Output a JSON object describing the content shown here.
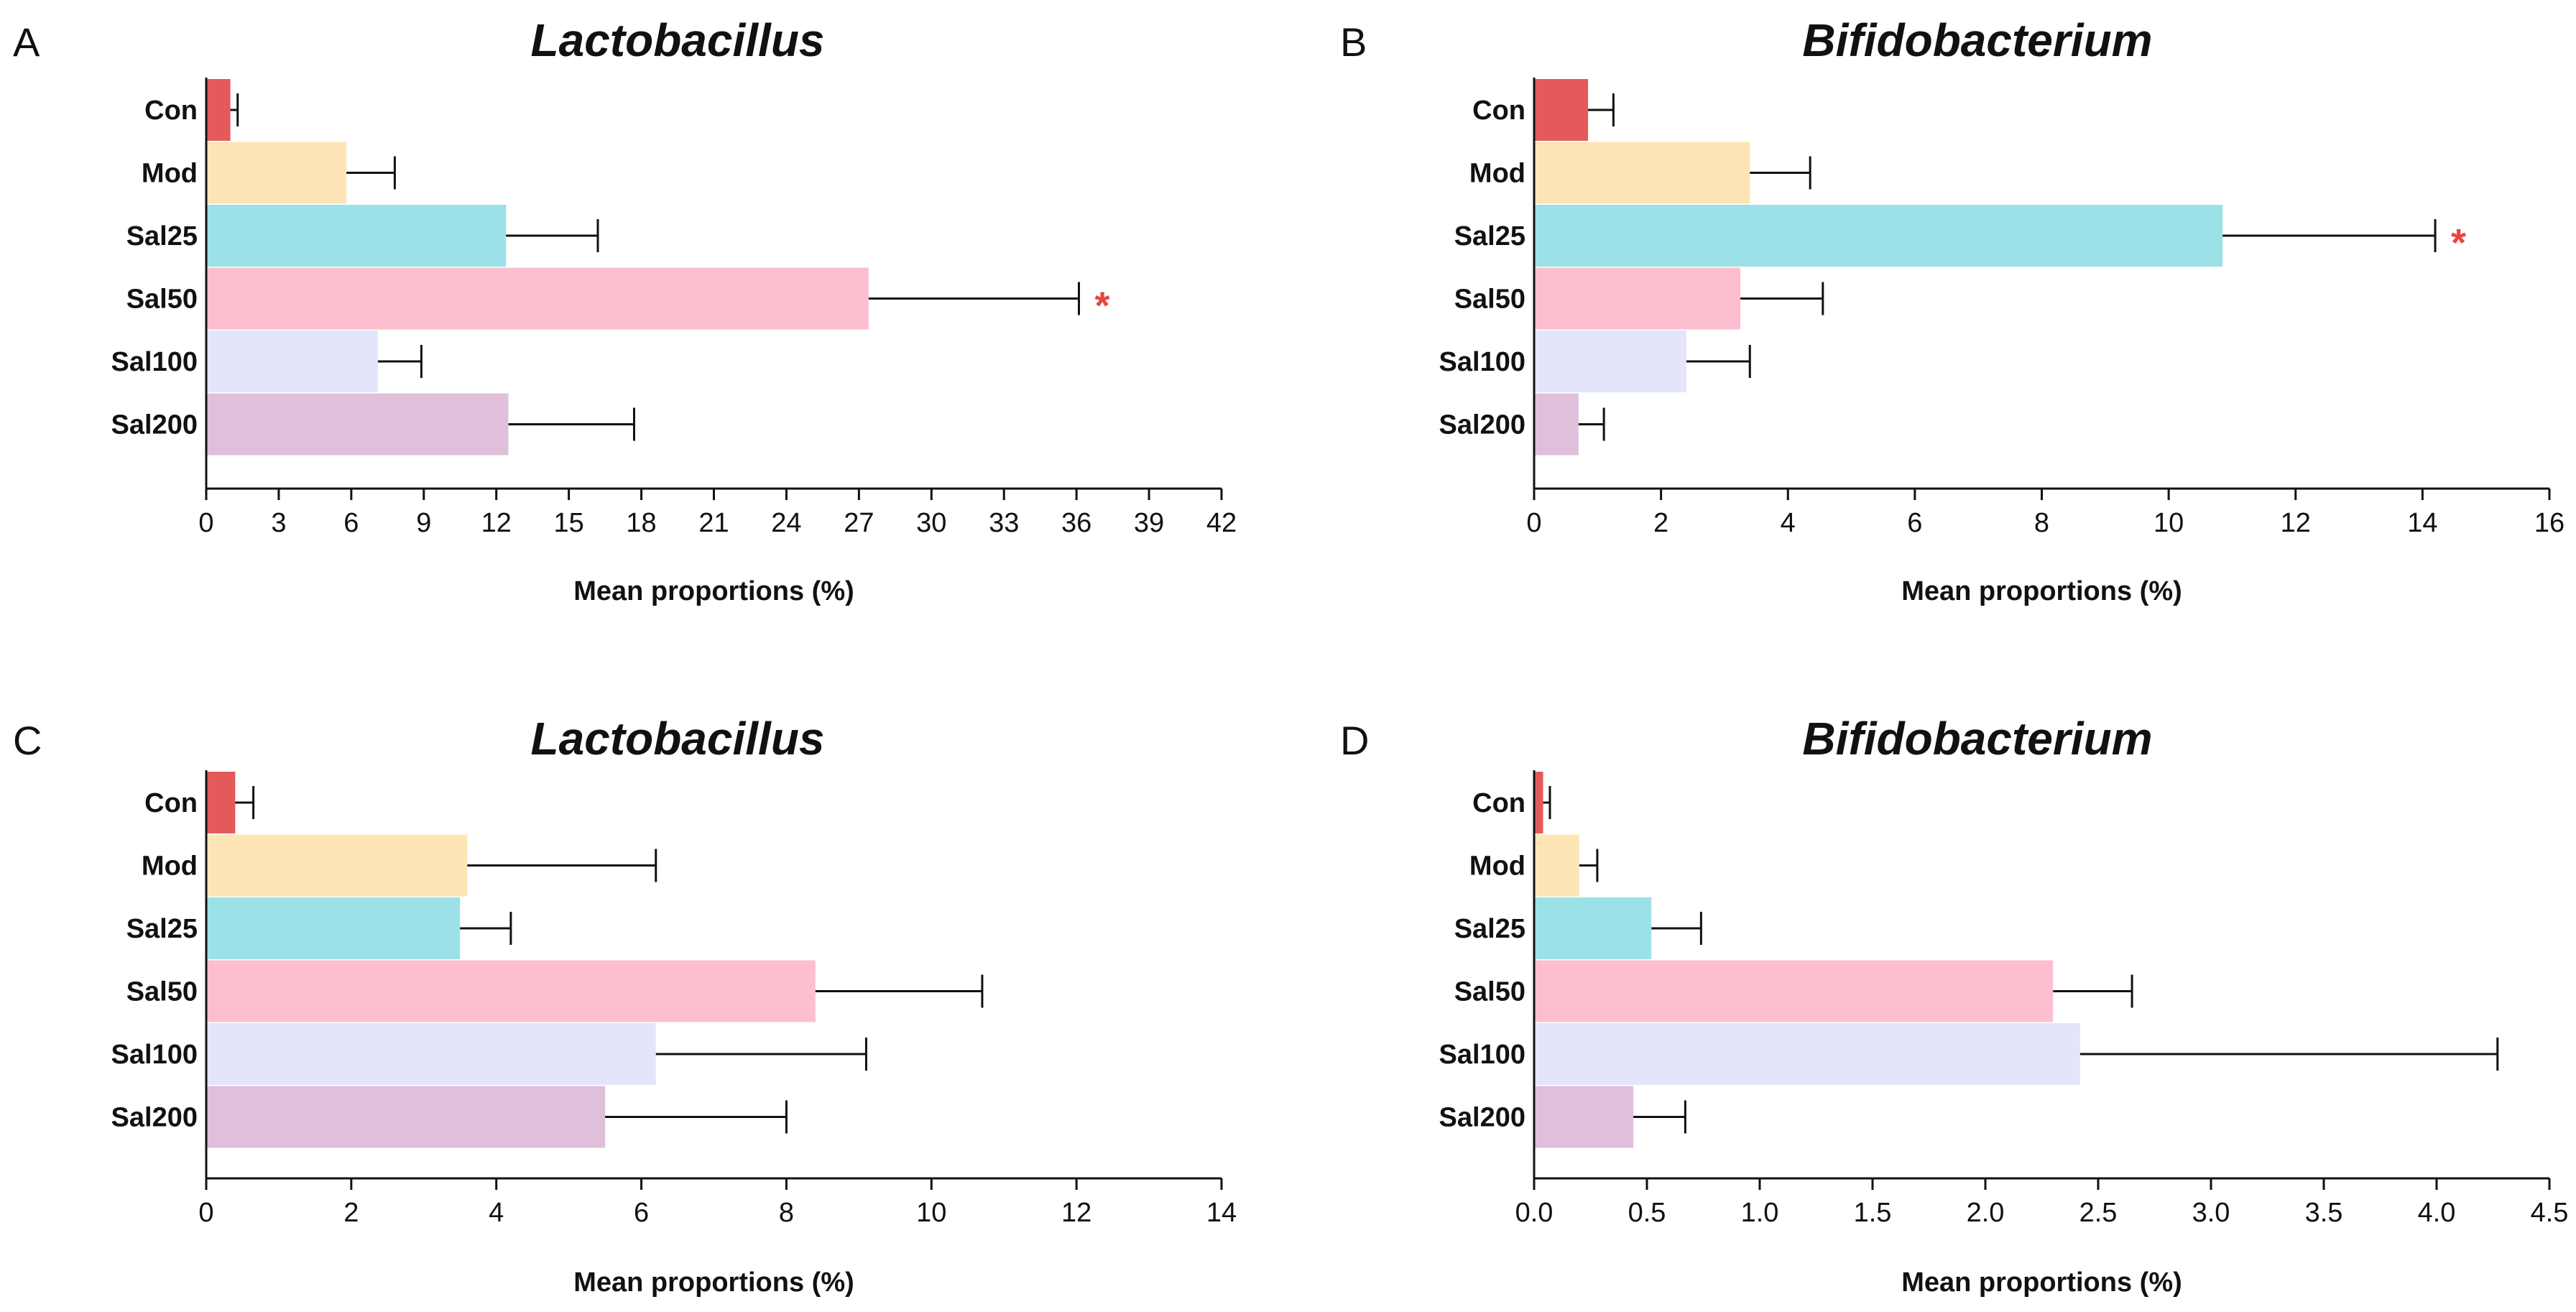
{
  "chart_data": [
    {
      "panel": "A",
      "type": "bar",
      "orientation": "horizontal",
      "title": "Lactobacillus",
      "xlabel": "Mean proportions (%)",
      "ylabel": "",
      "categories": [
        "Con",
        "Mod",
        "Sal25",
        "Sal50",
        "Sal100",
        "Sal200"
      ],
      "values": [
        1.0,
        5.8,
        12.4,
        27.4,
        7.1,
        12.5
      ],
      "errors": [
        0.3,
        2.0,
        3.8,
        8.7,
        1.8,
        5.2
      ],
      "colors": [
        "#e45a5a",
        "#fde5b5",
        "#9ce1e8",
        "#fdbfcf",
        "#e4e5fb",
        "#e0bfdb"
      ],
      "significance": [
        "",
        "",
        "",
        "*",
        "",
        ""
      ],
      "xlim": [
        0,
        42
      ],
      "ticks": [
        0,
        3,
        6,
        9,
        12,
        15,
        18,
        21,
        24,
        27,
        30,
        33,
        36,
        39,
        42
      ],
      "tick_labels": [
        "0",
        "3",
        "6",
        "9",
        "12",
        "15",
        "18",
        "21",
        "24",
        "27",
        "30",
        "33",
        "36",
        "39",
        "42"
      ]
    },
    {
      "panel": "B",
      "type": "bar",
      "orientation": "horizontal",
      "title": "Bifidobacterium",
      "xlabel": "Mean proportions (%)",
      "ylabel": "",
      "categories": [
        "Con",
        "Mod",
        "Sal25",
        "Sal50",
        "Sal100",
        "Sal200"
      ],
      "values": [
        0.85,
        3.4,
        10.85,
        3.25,
        2.4,
        0.7
      ],
      "errors": [
        0.4,
        0.95,
        3.35,
        1.3,
        1.0,
        0.4
      ],
      "colors": [
        "#e45a5a",
        "#fde5b5",
        "#9ce1e8",
        "#fdbfcf",
        "#e4e5fb",
        "#e0bfdb"
      ],
      "significance": [
        "",
        "",
        "*",
        "",
        "",
        ""
      ],
      "xlim": [
        0,
        16
      ],
      "ticks": [
        0,
        2,
        4,
        6,
        8,
        10,
        12,
        14,
        16
      ],
      "tick_labels": [
        "0",
        "2",
        "4",
        "6",
        "8",
        "10",
        "12",
        "14",
        "16"
      ]
    },
    {
      "panel": "C",
      "type": "bar",
      "orientation": "horizontal",
      "title": "Lactobacillus",
      "xlabel": "Mean proportions (%)",
      "ylabel": "",
      "categories": [
        "Con",
        "Mod",
        "Sal25",
        "Sal50",
        "Sal100",
        "Sal200"
      ],
      "values": [
        0.4,
        3.6,
        3.5,
        8.4,
        6.2,
        5.5
      ],
      "errors": [
        0.25,
        2.6,
        0.7,
        2.3,
        2.9,
        2.5
      ],
      "colors": [
        "#e45a5a",
        "#fde5b5",
        "#9ce1e8",
        "#fdbfcf",
        "#e4e5fb",
        "#e0bfdb"
      ],
      "significance": [
        "",
        "",
        "",
        "",
        "",
        ""
      ],
      "xlim": [
        0,
        14
      ],
      "ticks": [
        0,
        2,
        4,
        6,
        8,
        10,
        12,
        14
      ],
      "tick_labels": [
        "0",
        "2",
        "4",
        "6",
        "8",
        "10",
        "12",
        "14"
      ]
    },
    {
      "panel": "D",
      "type": "bar",
      "orientation": "horizontal",
      "title": "Bifidobacterium",
      "xlabel": "Mean proportions (%)",
      "ylabel": "",
      "categories": [
        "Con",
        "Mod",
        "Sal25",
        "Sal50",
        "Sal100",
        "Sal200"
      ],
      "values": [
        0.04,
        0.2,
        0.52,
        2.3,
        2.42,
        0.44
      ],
      "errors": [
        0.03,
        0.08,
        0.22,
        0.35,
        1.85,
        0.23
      ],
      "colors": [
        "#e45a5a",
        "#fde5b5",
        "#9ce1e8",
        "#fdbfcf",
        "#e4e5fb",
        "#e0bfdb"
      ],
      "significance": [
        "",
        "",
        "",
        "",
        "",
        ""
      ],
      "xlim": [
        0,
        4.5
      ],
      "ticks": [
        0,
        0.5,
        1.0,
        1.5,
        2.0,
        2.5,
        3.0,
        3.5,
        4.0,
        4.5
      ],
      "tick_labels": [
        "0.0",
        "0.5",
        "1.0",
        "1.5",
        "2.0",
        "2.5",
        "3.0",
        "3.5",
        "4.0",
        "4.5"
      ]
    }
  ]
}
